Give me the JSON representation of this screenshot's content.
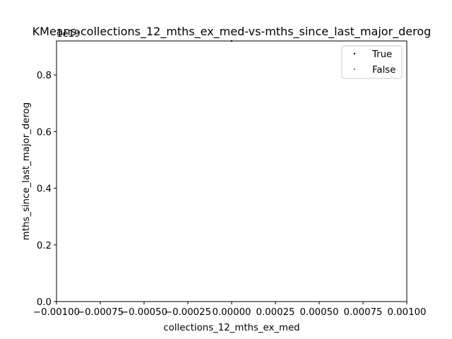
{
  "chart_data": {
    "type": "scatter",
    "title": "KMeans-collections_12_mths_ex_med-vs-mths_since_last_major_derog",
    "xlabel": "collections_12_mths_ex_med",
    "ylabel": "mths_since_last_major_derog",
    "y_offset_text": "1e19",
    "xlim": [
      -0.001,
      0.001
    ],
    "ylim": [
      0,
      0.92
    ],
    "x_ticks": [
      {
        "value": -0.001,
        "label": "−0.00100"
      },
      {
        "value": -0.00075,
        "label": "−0.00075"
      },
      {
        "value": -0.0005,
        "label": "−0.00050"
      },
      {
        "value": -0.00025,
        "label": "−0.00025"
      },
      {
        "value": 0.0,
        "label": "0.00000"
      },
      {
        "value": 0.00025,
        "label": "0.00025"
      },
      {
        "value": 0.0005,
        "label": "0.00050"
      },
      {
        "value": 0.00075,
        "label": "0.00075"
      },
      {
        "value": 0.001,
        "label": "0.00100"
      }
    ],
    "y_ticks": [
      {
        "value": 0.0,
        "label": "0.0"
      },
      {
        "value": 0.2,
        "label": "0.2"
      },
      {
        "value": 0.4,
        "label": "0.4"
      },
      {
        "value": 0.6,
        "label": "0.6"
      },
      {
        "value": 0.8,
        "label": "0.8"
      }
    ],
    "grid": false,
    "legend_placement": "top-right",
    "series": [
      {
        "name": "True",
        "color": "#000000",
        "points": [
          {
            "x": 0.0,
            "y": 0.92
          }
        ]
      },
      {
        "name": "False",
        "color": "#808080",
        "points": []
      }
    ]
  }
}
